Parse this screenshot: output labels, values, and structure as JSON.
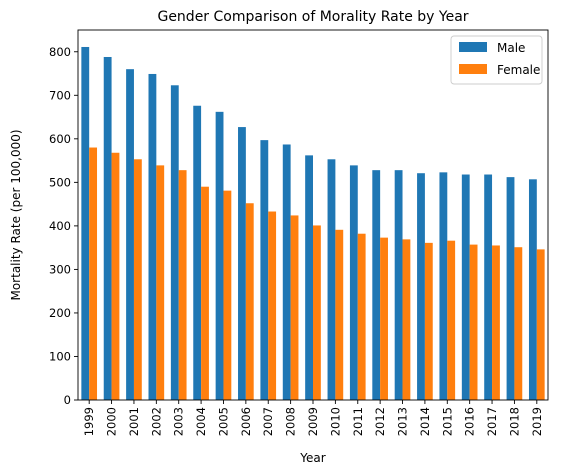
{
  "chart_data": {
    "type": "bar",
    "title": "Gender Comparison of Morality Rate by Year",
    "xlabel": "Year",
    "ylabel": "Mortality Rate (per 100,000)",
    "ylim": [
      0,
      850
    ],
    "yticks": [
      0,
      100,
      200,
      300,
      400,
      500,
      600,
      700,
      800
    ],
    "grid": false,
    "legend_position": "top-right",
    "categories": [
      "1999",
      "2000",
      "2001",
      "2002",
      "2003",
      "2004",
      "2005",
      "2006",
      "2007",
      "2008",
      "2009",
      "2010",
      "2011",
      "2012",
      "2013",
      "2014",
      "2015",
      "2016",
      "2017",
      "2018",
      "2019"
    ],
    "series": [
      {
        "name": "Male",
        "color": "#1f77b4",
        "values": [
          811,
          788,
          760,
          749,
          723,
          676,
          662,
          627,
          597,
          587,
          562,
          553,
          539,
          528,
          528,
          521,
          523,
          518,
          518,
          512,
          507
        ]
      },
      {
        "name": "Female",
        "color": "#ff7f0e",
        "values": [
          580,
          568,
          553,
          539,
          528,
          490,
          481,
          452,
          433,
          424,
          401,
          391,
          382,
          373,
          369,
          361,
          366,
          357,
          355,
          351,
          346
        ]
      }
    ]
  }
}
